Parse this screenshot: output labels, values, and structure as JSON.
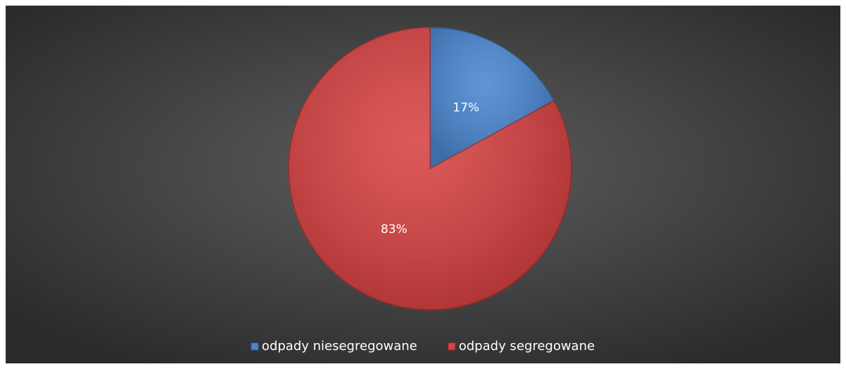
{
  "chart_data": {
    "type": "pie",
    "categories": [
      "odpady niesegregowane",
      "odpady segregowane"
    ],
    "values": [
      17,
      83
    ],
    "value_labels": [
      "17%",
      "83%"
    ],
    "colors": [
      "#4a86d0",
      "#d84242"
    ],
    "legend": "bottom"
  }
}
